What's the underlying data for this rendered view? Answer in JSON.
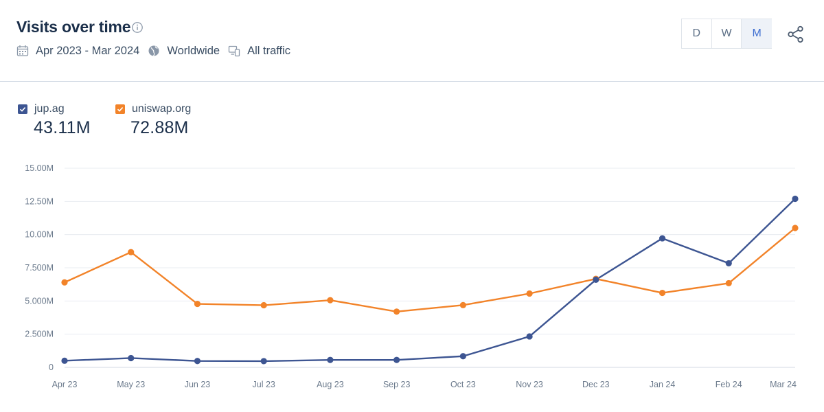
{
  "header": {
    "title": "Visits over time",
    "date_range": "Apr 2023 - Mar 2024",
    "region": "Worldwide",
    "traffic": "All traffic"
  },
  "granularity": {
    "options": [
      "D",
      "W",
      "M"
    ],
    "selected": "M"
  },
  "legend": [
    {
      "name": "jup.ag",
      "total": "43.11M",
      "color": "#3d5592"
    },
    {
      "name": "uniswap.org",
      "total": "72.88M",
      "color": "#f28329"
    }
  ],
  "colors": {
    "grid": "#e8ecf1",
    "text": "#6b7a8c",
    "active": "#3f6fd1"
  },
  "chart_data": {
    "type": "line",
    "title": "Visits over time",
    "categories": [
      "Apr 23",
      "May 23",
      "Jun 23",
      "Jul 23",
      "Aug 23",
      "Sep 23",
      "Oct 23",
      "Nov 23",
      "Dec 23",
      "Jan 24",
      "Feb 24",
      "Mar 24"
    ],
    "y_ticks": [
      {
        "value": 0,
        "label": "0"
      },
      {
        "value": 2500000,
        "label": "2.500M"
      },
      {
        "value": 5000000,
        "label": "5.000M"
      },
      {
        "value": 7500000,
        "label": "7.500M"
      },
      {
        "value": 10000000,
        "label": "10.00M"
      },
      {
        "value": 12500000,
        "label": "12.50M"
      },
      {
        "value": 15000000,
        "label": "15.00M"
      }
    ],
    "ylim": [
      0,
      15000000
    ],
    "grid": true,
    "series": [
      {
        "name": "jup.ag",
        "color": "#3d5592",
        "values": [
          500000,
          700000,
          480000,
          470000,
          560000,
          560000,
          840000,
          2330000,
          6600000,
          9720000,
          7840000,
          12700000
        ]
      },
      {
        "name": "uniswap.org",
        "color": "#f28329",
        "values": [
          6400000,
          8680000,
          4780000,
          4680000,
          5060000,
          4200000,
          4690000,
          5560000,
          6670000,
          5610000,
          6340000,
          10500000
        ]
      }
    ]
  }
}
